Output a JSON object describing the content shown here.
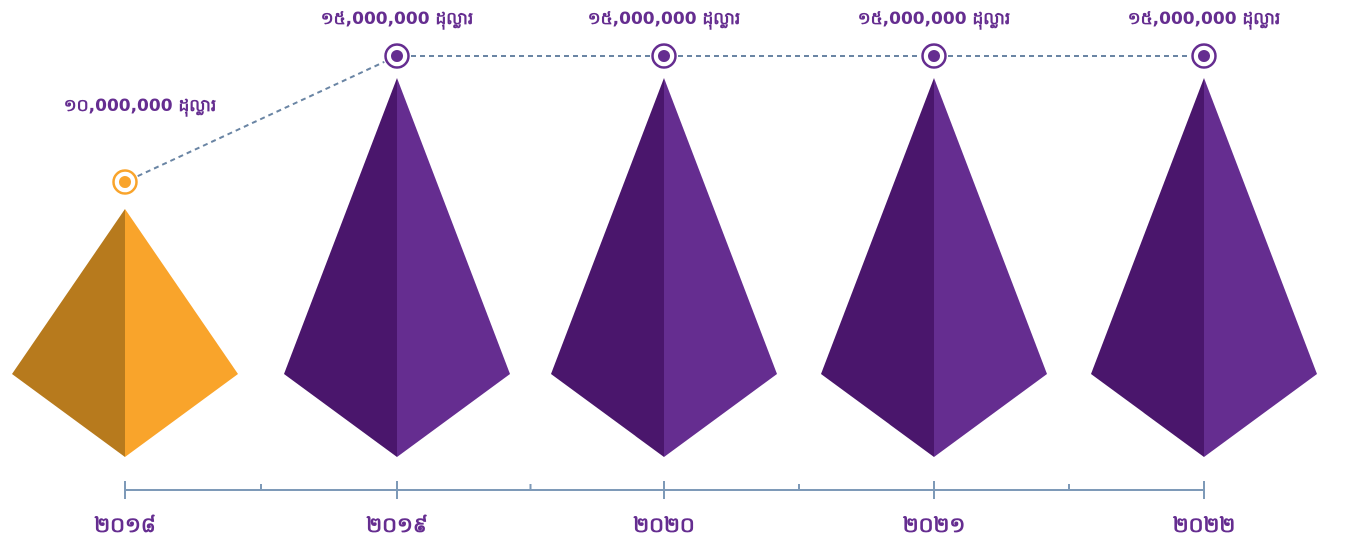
{
  "chart_data": {
    "type": "bar",
    "title": "",
    "xlabel": "",
    "ylabel": "",
    "categories": [
      "២០១៨",
      "២០១៩",
      "២០២០",
      "២០២១",
      "២០២២"
    ],
    "values": [
      10000000,
      15000000,
      15000000,
      15000000,
      15000000
    ],
    "value_labels": [
      "១០,000,000 ដុល្លារ",
      "១៥,000,000 ដុល្លារ",
      "១៥,000,000 ដុល្លារ",
      "១៥,000,000 ដុល្លារ",
      "១៥,000,000 ដុល្លារ"
    ],
    "ylim": [
      0,
      15000000
    ],
    "grid": false,
    "connector": "dashed line through markers",
    "colors": {
      "highlight_light": "#F9A42B",
      "highlight_dark": "#B77A1D",
      "primary_light": "#652D90",
      "primary_dark": "#4A166C",
      "connector": "#6A85A4",
      "axis": "#7E9AB8",
      "highlight_label": "#652D90",
      "year_label": "#652D90"
    },
    "highlight_index": 0
  }
}
